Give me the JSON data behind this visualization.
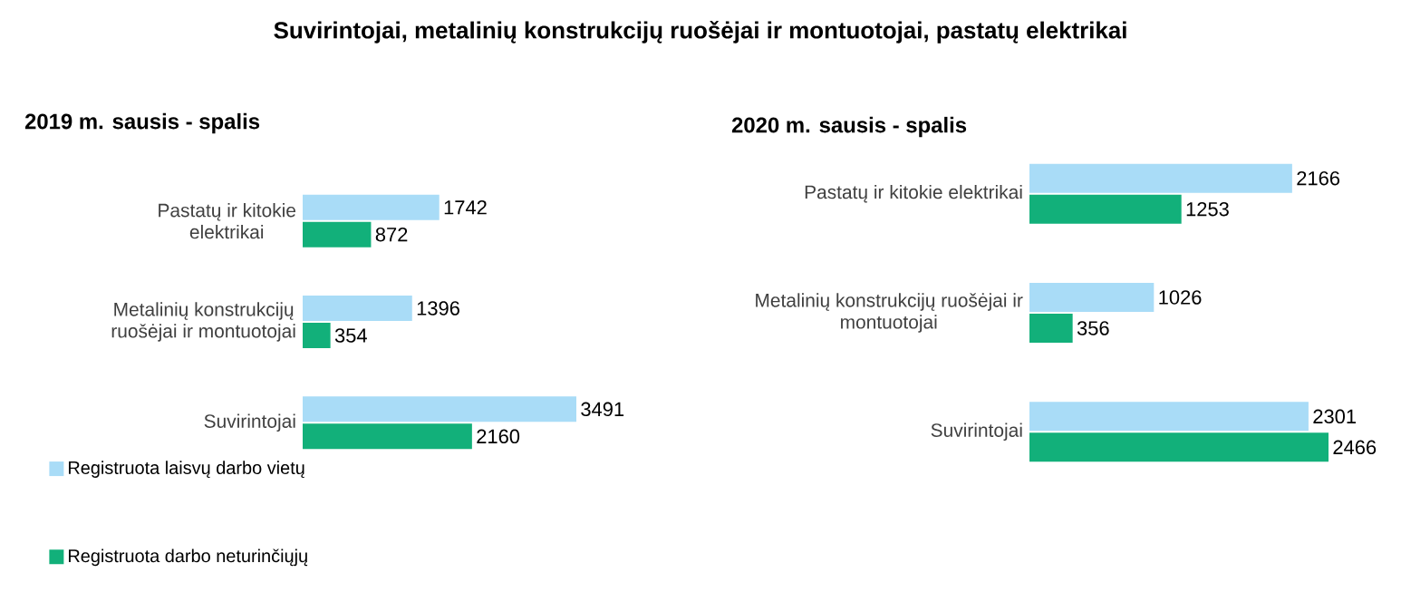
{
  "chart_data": [
    {
      "type": "bar",
      "orientation": "horizontal",
      "title": "Suvirintojai, metalinių konstrukcijų ruošėjai ir montuotojai, pastatų elektrikai",
      "subtitle": "2019 m. sausis - spalis",
      "categories": [
        "Pastatų ir kitokie elektrikai",
        "Metalinių konstrukcijų ruošėjai ir montuotojai",
        "Suvirintojai"
      ],
      "data_labels": true,
      "legend": "bottom left",
      "series": [
        {
          "name": "Registruota laisvų darbo vietų",
          "color": "#a9dcf7",
          "values": [
            1742,
            1396,
            3491
          ]
        },
        {
          "name": "Registruota darbo neturinčiųjų",
          "color": "#12b07a",
          "values": [
            872,
            354,
            2160
          ]
        }
      ]
    },
    {
      "type": "bar",
      "orientation": "horizontal",
      "subtitle": "2020 m. sausis - spalis",
      "categories": [
        "Pastatų ir kitokie elektrikai",
        "Metalinių konstrukcijų ruošėjai ir montuotojai",
        "Suvirintojai"
      ],
      "data_labels": true,
      "series": [
        {
          "color": "#a9dcf7",
          "values": [
            2166,
            1026,
            2301
          ]
        },
        {
          "color": "#12b07a",
          "values": [
            1253,
            356,
            2466
          ]
        }
      ]
    }
  ]
}
